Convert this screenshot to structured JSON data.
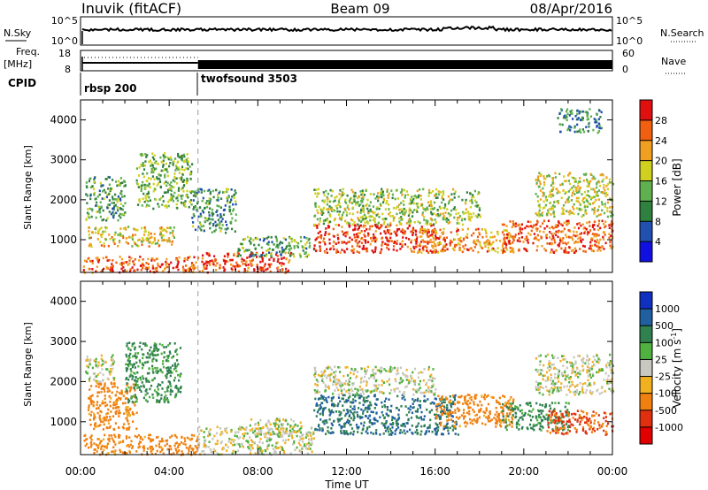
{
  "header": {
    "station": "Inuvik (fitACF)",
    "beam": "Beam 09",
    "date": "08/Apr/2016"
  },
  "top_panel": {
    "left_label": "N.Sky",
    "right_label": "N.Search",
    "left_ticks": [
      "10^5",
      "10^0"
    ],
    "right_ticks": [
      "10^5",
      "10^0"
    ]
  },
  "freq_panel": {
    "left_label_1": "Freq.",
    "left_label_2": "[MHz]",
    "right_label": "Nave",
    "left_ticks": [
      "18",
      "8"
    ],
    "right_ticks": [
      "60",
      "0"
    ]
  },
  "cpid_panel": {
    "label": "CPID",
    "segments": [
      {
        "label": "rbsp 200",
        "start_hour": 0
      },
      {
        "label": "twofsound 3503",
        "start_hour": 5.3
      }
    ]
  },
  "axes": {
    "ylabel": "Slant Range [km]",
    "xlabel": "Time UT",
    "y_ticks": [
      "1000",
      "2000",
      "3000",
      "4000"
    ],
    "x_ticks": [
      "00:00",
      "04:00",
      "08:00",
      "12:00",
      "16:00",
      "20:00",
      "00:00"
    ]
  },
  "colorbars": {
    "power": {
      "label": "Power [dB]",
      "ticks": [
        "4",
        "8",
        "12",
        "16",
        "20",
        "24",
        "28"
      ],
      "colors": [
        "#1010e0",
        "#2050b0",
        "#308040",
        "#60b050",
        "#d0d020",
        "#f0a020",
        "#f06010",
        "#e01010"
      ]
    },
    "velocity": {
      "label": "Velocity [m s",
      "label_sup": "-1",
      "label_end": "]",
      "ticks": [
        "1000",
        "500",
        "100",
        "25",
        "-25",
        "-100",
        "-500",
        "-1000"
      ],
      "colors": [
        "#1030c0",
        "#2060a0",
        "#308050",
        "#50b040",
        "#c8c8c0",
        "#f0b020",
        "#f08010",
        "#e03010",
        "#e00000"
      ]
    }
  },
  "chart_data": [
    {
      "type": "heatmap",
      "title": "Power",
      "ylabel": "Slant Range [km]",
      "xlabel": "Time UT",
      "xlim": [
        0,
        24
      ],
      "ylim": [
        180,
        4500
      ],
      "units": "dB",
      "regions": [
        {
          "x": [
            0.1,
            5.3
          ],
          "y": [
            200,
            600
          ],
          "value": 24
        },
        {
          "x": [
            0.3,
            4.2
          ],
          "y": [
            850,
            1350
          ],
          "value": 18
        },
        {
          "x": [
            0.2,
            2.0
          ],
          "y": [
            1500,
            2600
          ],
          "value": 10
        },
        {
          "x": [
            2.5,
            5.0
          ],
          "y": [
            1800,
            3200
          ],
          "value": 12
        },
        {
          "x": [
            5.3,
            9.5
          ],
          "y": [
            200,
            700
          ],
          "value": 26
        },
        {
          "x": [
            5.0,
            7.0
          ],
          "y": [
            1200,
            2300
          ],
          "value": 9
        },
        {
          "x": [
            7.0,
            10.5
          ],
          "y": [
            600,
            1100
          ],
          "value": 10
        },
        {
          "x": [
            10.5,
            16.0
          ],
          "y": [
            700,
            1400
          ],
          "value": 26
        },
        {
          "x": [
            10.5,
            18.0
          ],
          "y": [
            1400,
            2300
          ],
          "value": 14
        },
        {
          "x": [
            15.0,
            19.5
          ],
          "y": [
            700,
            1300
          ],
          "value": 22
        },
        {
          "x": [
            19.0,
            24.0
          ],
          "y": [
            700,
            1500
          ],
          "value": 24
        },
        {
          "x": [
            20.5,
            24.0
          ],
          "y": [
            1600,
            2700
          ],
          "value": 16
        },
        {
          "x": [
            21.5,
            23.5
          ],
          "y": [
            3700,
            4300
          ],
          "value": 8
        }
      ]
    },
    {
      "type": "heatmap",
      "title": "Velocity",
      "ylabel": "Slant Range [km]",
      "xlabel": "Time UT",
      "xlim": [
        0,
        24
      ],
      "ylim": [
        180,
        4500
      ],
      "units": "m s^-1",
      "regions": [
        {
          "x": [
            0.1,
            5.3
          ],
          "y": [
            200,
            700
          ],
          "value": -100
        },
        {
          "x": [
            0.3,
            2.5
          ],
          "y": [
            800,
            2000
          ],
          "value": -100
        },
        {
          "x": [
            0.2,
            1.5
          ],
          "y": [
            2000,
            2700
          ],
          "value": 0
        },
        {
          "x": [
            2.0,
            4.5
          ],
          "y": [
            1500,
            3000
          ],
          "value": 80
        },
        {
          "x": [
            5.3,
            10.5
          ],
          "y": [
            200,
            900
          ],
          "value": 0
        },
        {
          "x": [
            7.5,
            10.0
          ],
          "y": [
            700,
            1100
          ],
          "value": 0
        },
        {
          "x": [
            10.5,
            17.0
          ],
          "y": [
            700,
            1700
          ],
          "value": 300
        },
        {
          "x": [
            10.5,
            16.0
          ],
          "y": [
            1700,
            2400
          ],
          "value": 0
        },
        {
          "x": [
            16.0,
            19.5
          ],
          "y": [
            900,
            1700
          ],
          "value": -100
        },
        {
          "x": [
            19.0,
            22.0
          ],
          "y": [
            800,
            1500
          ],
          "value": 80
        },
        {
          "x": [
            21.0,
            24.0
          ],
          "y": [
            700,
            1300
          ],
          "value": -300
        },
        {
          "x": [
            20.5,
            24.0
          ],
          "y": [
            1700,
            2700
          ],
          "value": 0
        }
      ]
    }
  ]
}
